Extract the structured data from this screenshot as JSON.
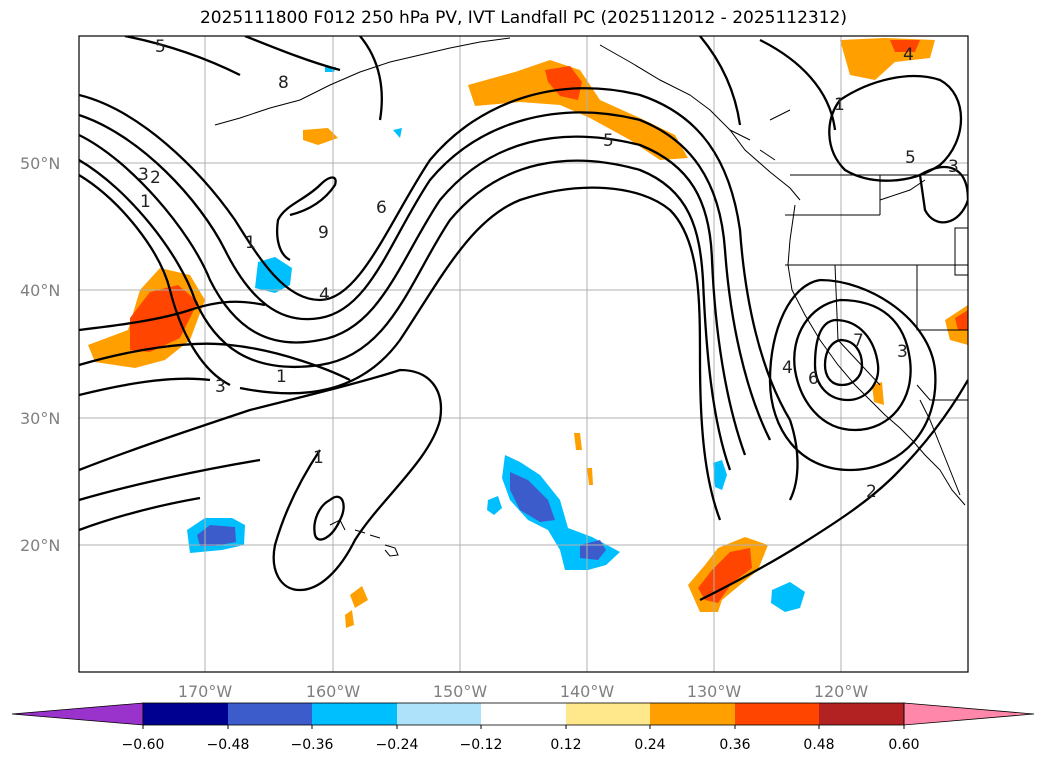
{
  "title": "2025111800 F012 250 hPa PV, IVT Landfall PC (2025112012 - 2025112312)",
  "map": {
    "lat_labels": [
      "50°N",
      "40°N",
      "30°N",
      "20°N"
    ],
    "lon_labels": [
      "170°W",
      "160°W",
      "150°W",
      "140°W",
      "130°W",
      "120°W"
    ],
    "contour_labels": [
      "5",
      "8",
      "5",
      "4",
      "3",
      "5",
      "2",
      "3",
      "1",
      "9",
      "6",
      "1",
      "4",
      "3",
      "1",
      "1",
      "7",
      "6",
      "4",
      "3",
      "2",
      "1"
    ]
  },
  "colorbar": {
    "ticks": [
      "−0.60",
      "−0.48",
      "−0.36",
      "−0.24",
      "−0.12",
      "0.12",
      "0.24",
      "0.36",
      "0.48",
      "0.60"
    ],
    "colors": [
      "#9933cc",
      "#000090",
      "#3c5ccc",
      "#00bfff",
      "#aee2fa",
      "#ffffff",
      "#ffe88c",
      "#ffa000",
      "#ff4500",
      "#b22222",
      "#ff88aa"
    ]
  }
}
